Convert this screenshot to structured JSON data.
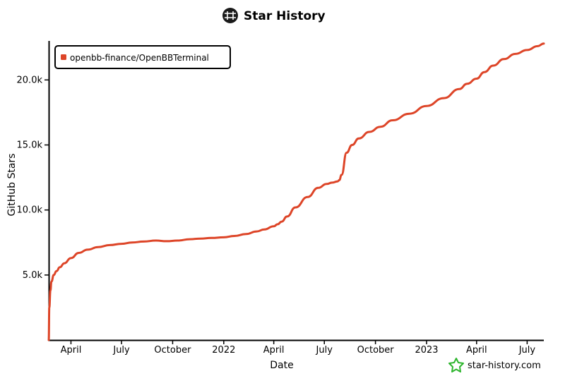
{
  "title": "Star History",
  "watermark": "star-history.com",
  "chart_data": {
    "type": "line",
    "title": "Star History",
    "xlabel": "Date",
    "ylabel": "GitHub Stars",
    "x_ticks": [
      "April",
      "July",
      "October",
      "2022",
      "April",
      "July",
      "October",
      "2023",
      "April",
      "July"
    ],
    "y_ticks": [
      "5.0k",
      "10.0k",
      "15.0k",
      "20.0k"
    ],
    "xlim": [
      "2021-02-20",
      "2023-07-31"
    ],
    "ylim": [
      0,
      23000
    ],
    "legend": {
      "position": "top-left",
      "entries": [
        "openbb-finance/OpenBBTerminal"
      ]
    },
    "grid": false,
    "series": [
      {
        "name": "openbb-finance/OpenBBTerminal",
        "color": "#dd4528",
        "x": [
          "2021-02-20",
          "2021-02-21",
          "2021-02-23",
          "2021-02-25",
          "2021-03-01",
          "2021-03-06",
          "2021-03-12",
          "2021-03-20",
          "2021-04-01",
          "2021-04-15",
          "2021-05-01",
          "2021-05-20",
          "2021-06-10",
          "2021-07-01",
          "2021-07-20",
          "2021-08-10",
          "2021-09-01",
          "2021-09-20",
          "2021-10-10",
          "2021-11-01",
          "2021-11-20",
          "2021-12-10",
          "2022-01-01",
          "2022-01-20",
          "2022-02-10",
          "2022-03-01",
          "2022-03-15",
          "2022-04-01",
          "2022-04-08",
          "2022-04-15",
          "2022-04-25",
          "2022-05-10",
          "2022-06-01",
          "2022-06-20",
          "2022-07-05",
          "2022-07-15",
          "2022-07-25",
          "2022-07-28",
          "2022-08-01",
          "2022-08-10",
          "2022-08-20",
          "2022-09-01",
          "2022-09-20",
          "2022-10-10",
          "2022-11-01",
          "2022-12-01",
          "2023-01-01",
          "2023-02-01",
          "2023-03-01",
          "2023-03-15",
          "2023-04-01",
          "2023-04-15",
          "2023-05-01",
          "2023-05-20",
          "2023-06-10",
          "2023-07-01",
          "2023-07-20",
          "2023-07-31"
        ],
        "y": [
          0,
          2500,
          3800,
          4500,
          5000,
          5300,
          5600,
          5900,
          6300,
          6700,
          6950,
          7150,
          7300,
          7400,
          7500,
          7570,
          7650,
          7600,
          7650,
          7750,
          7800,
          7850,
          7900,
          8000,
          8150,
          8350,
          8500,
          8750,
          8900,
          9100,
          9500,
          10200,
          11000,
          11700,
          12000,
          12100,
          12200,
          12300,
          12700,
          14400,
          15000,
          15500,
          16000,
          16400,
          16900,
          17400,
          18000,
          18600,
          19300,
          19700,
          20100,
          20600,
          21100,
          21600,
          22000,
          22300,
          22600,
          22800
        ]
      }
    ]
  }
}
